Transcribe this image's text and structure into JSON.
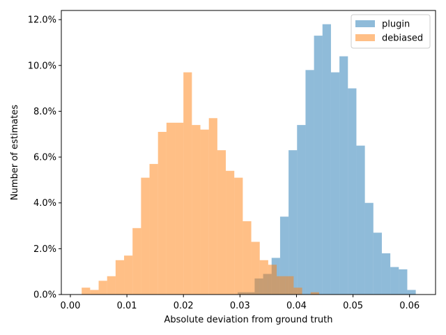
{
  "chart_data": {
    "type": "histogram",
    "xlabel": "Absolute deviation from ground truth",
    "ylabel": "Number of estimates",
    "xlim": [
      -0.0016,
      0.0646
    ],
    "ylim": [
      0,
      12.4
    ],
    "x_ticks": [
      0.0,
      0.01,
      0.02,
      0.03,
      0.04,
      0.05,
      0.06
    ],
    "x_tick_labels": [
      "0.00",
      "0.01",
      "0.02",
      "0.03",
      "0.04",
      "0.05",
      "0.06"
    ],
    "y_ticks": [
      0,
      2,
      4,
      6,
      8,
      10,
      12
    ],
    "y_tick_labels": [
      "0.0%",
      "2.0%",
      "4.0%",
      "6.0%",
      "8.0%",
      "10.0%",
      "12.0%"
    ],
    "y_unit": "percent",
    "grid": false,
    "legend_position": "top-right",
    "series": [
      {
        "name": "plugin",
        "color": "#1f77b4",
        "alpha": 0.5,
        "bin_width": 0.0015,
        "bins": [
          {
            "x0": 0.0296,
            "value": 0.1
          },
          {
            "x0": 0.0311,
            "value": 0.1
          },
          {
            "x0": 0.0326,
            "value": 0.7
          },
          {
            "x0": 0.0341,
            "value": 0.9
          },
          {
            "x0": 0.0356,
            "value": 1.6
          },
          {
            "x0": 0.0371,
            "value": 3.4
          },
          {
            "x0": 0.0386,
            "value": 6.3
          },
          {
            "x0": 0.0401,
            "value": 7.4
          },
          {
            "x0": 0.0416,
            "value": 9.8
          },
          {
            "x0": 0.0431,
            "value": 11.3
          },
          {
            "x0": 0.0446,
            "value": 11.8
          },
          {
            "x0": 0.0461,
            "value": 9.7
          },
          {
            "x0": 0.0476,
            "value": 10.4
          },
          {
            "x0": 0.0491,
            "value": 9.0
          },
          {
            "x0": 0.0506,
            "value": 6.5
          },
          {
            "x0": 0.0521,
            "value": 4.0
          },
          {
            "x0": 0.0536,
            "value": 2.7
          },
          {
            "x0": 0.0551,
            "value": 1.8
          },
          {
            "x0": 0.0566,
            "value": 1.2
          },
          {
            "x0": 0.0581,
            "value": 1.1
          },
          {
            "x0": 0.0596,
            "value": 0.2
          }
        ]
      },
      {
        "name": "debiased",
        "color": "#ff7f0e",
        "alpha": 0.5,
        "bin_width": 0.0015,
        "bins": [
          {
            "x0": 0.002,
            "value": 0.3
          },
          {
            "x0": 0.0035,
            "value": 0.2
          },
          {
            "x0": 0.005,
            "value": 0.6
          },
          {
            "x0": 0.0065,
            "value": 0.8
          },
          {
            "x0": 0.008,
            "value": 1.5
          },
          {
            "x0": 0.0095,
            "value": 1.7
          },
          {
            "x0": 0.011,
            "value": 2.9
          },
          {
            "x0": 0.0125,
            "value": 5.1
          },
          {
            "x0": 0.014,
            "value": 5.7
          },
          {
            "x0": 0.0155,
            "value": 7.1
          },
          {
            "x0": 0.017,
            "value": 7.5
          },
          {
            "x0": 0.0185,
            "value": 7.5
          },
          {
            "x0": 0.02,
            "value": 9.7
          },
          {
            "x0": 0.0215,
            "value": 7.4
          },
          {
            "x0": 0.023,
            "value": 7.2
          },
          {
            "x0": 0.0245,
            "value": 7.7
          },
          {
            "x0": 0.026,
            "value": 6.3
          },
          {
            "x0": 0.0275,
            "value": 5.4
          },
          {
            "x0": 0.029,
            "value": 5.1
          },
          {
            "x0": 0.0305,
            "value": 3.2
          },
          {
            "x0": 0.032,
            "value": 2.3
          },
          {
            "x0": 0.0335,
            "value": 1.5
          },
          {
            "x0": 0.035,
            "value": 1.3
          },
          {
            "x0": 0.0365,
            "value": 0.8
          },
          {
            "x0": 0.038,
            "value": 0.8
          },
          {
            "x0": 0.0395,
            "value": 0.3
          },
          {
            "x0": 0.0425,
            "value": 0.1
          }
        ]
      }
    ]
  }
}
